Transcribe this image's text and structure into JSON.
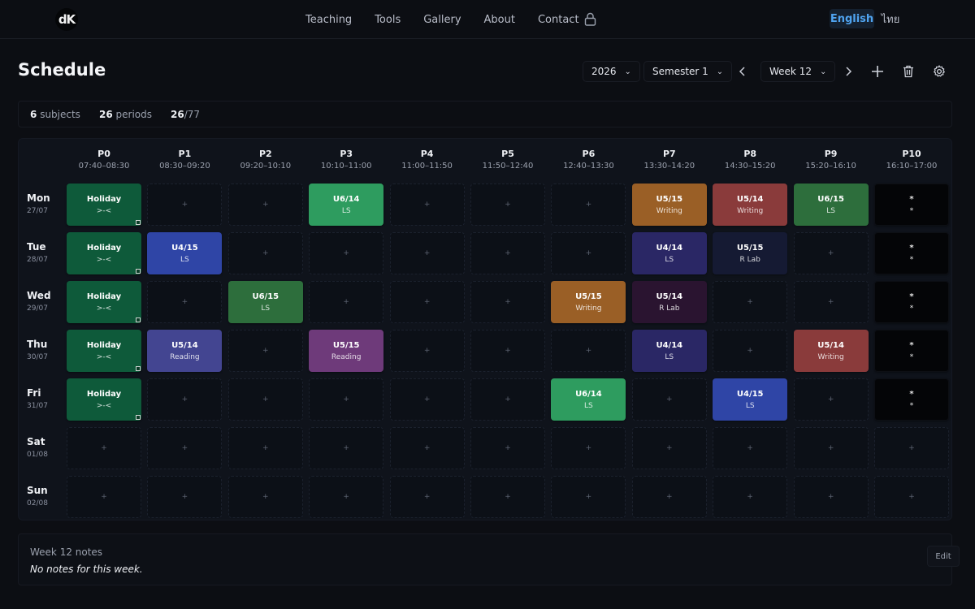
{
  "nav": {
    "logo": "dK",
    "links": [
      "Teaching",
      "Tools",
      "Gallery",
      "About",
      "Contact"
    ],
    "lang_en": "English",
    "lang_th": "ไทย"
  },
  "header": {
    "title": "Schedule",
    "year": "2026",
    "semester": "Semester 1",
    "week": "Week 12"
  },
  "stats": {
    "subjects_count": "6",
    "subjects_label": "subjects",
    "periods_count": "26",
    "periods_label": "periods",
    "progress_done": "26",
    "progress_total": "/77"
  },
  "periods": [
    {
      "label": "P0",
      "time": "07:40–08:30"
    },
    {
      "label": "P1",
      "time": "08:30–09:20"
    },
    {
      "label": "P2",
      "time": "09:20–10:10"
    },
    {
      "label": "P3",
      "time": "10:10–11:00"
    },
    {
      "label": "P4",
      "time": "11:00–11:50"
    },
    {
      "label": "P5",
      "time": "11:50–12:40"
    },
    {
      "label": "P6",
      "time": "12:40–13:30"
    },
    {
      "label": "P7",
      "time": "13:30–14:20"
    },
    {
      "label": "P8",
      "time": "14:30–15:20"
    },
    {
      "label": "P9",
      "time": "15:20–16:10"
    },
    {
      "label": "P10",
      "time": "16:10–17:00"
    }
  ],
  "days": [
    {
      "name": "Mon",
      "date": "27/07"
    },
    {
      "name": "Tue",
      "date": "28/07"
    },
    {
      "name": "Wed",
      "date": "29/07"
    },
    {
      "name": "Thu",
      "date": "30/07"
    },
    {
      "name": "Fri",
      "date": "31/07"
    },
    {
      "name": "Sat",
      "date": "01/08"
    },
    {
      "name": "Sun",
      "date": "02/08"
    }
  ],
  "empty_symbol": "+",
  "colors": {
    "holiday": "#0e5a3a",
    "green_light": "#2e9c5f",
    "green": "#2d6e3c",
    "orange": "#9a5f26",
    "red": "#8a3b3b",
    "blue": "#2f45a6",
    "indigo": "#2a2765",
    "navy": "#151a33",
    "plum": "#2a1430",
    "slate_blue": "#434591",
    "purple": "#6e3a7a",
    "star": "#040507"
  },
  "cells": [
    {
      "day": 0,
      "period": 0,
      "title": "Holiday",
      "sub": ">-<",
      "color": "holiday",
      "marker": true
    },
    {
      "day": 0,
      "period": 3,
      "title": "U6/14",
      "sub": "LS",
      "color": "green_light"
    },
    {
      "day": 0,
      "period": 7,
      "title": "U5/15",
      "sub": "Writing",
      "color": "orange"
    },
    {
      "day": 0,
      "period": 8,
      "title": "U5/14",
      "sub": "Writing",
      "color": "red"
    },
    {
      "day": 0,
      "period": 9,
      "title": "U6/15",
      "sub": "LS",
      "color": "green"
    },
    {
      "day": 0,
      "period": 10,
      "title": "*",
      "sub": "*",
      "color": "star"
    },
    {
      "day": 1,
      "period": 0,
      "title": "Holiday",
      "sub": ">-<",
      "color": "holiday",
      "marker": true
    },
    {
      "day": 1,
      "period": 1,
      "title": "U4/15",
      "sub": "LS",
      "color": "blue"
    },
    {
      "day": 1,
      "period": 7,
      "title": "U4/14",
      "sub": "LS",
      "color": "indigo"
    },
    {
      "day": 1,
      "period": 8,
      "title": "U5/15",
      "sub": "R Lab",
      "color": "navy"
    },
    {
      "day": 1,
      "period": 10,
      "title": "*",
      "sub": "*",
      "color": "star"
    },
    {
      "day": 2,
      "period": 0,
      "title": "Holiday",
      "sub": ">-<",
      "color": "holiday",
      "marker": true
    },
    {
      "day": 2,
      "period": 2,
      "title": "U6/15",
      "sub": "LS",
      "color": "green"
    },
    {
      "day": 2,
      "period": 6,
      "title": "U5/15",
      "sub": "Writing",
      "color": "orange"
    },
    {
      "day": 2,
      "period": 7,
      "title": "U5/14",
      "sub": "R Lab",
      "color": "plum"
    },
    {
      "day": 2,
      "period": 10,
      "title": "*",
      "sub": "*",
      "color": "star"
    },
    {
      "day": 3,
      "period": 0,
      "title": "Holiday",
      "sub": ">-<",
      "color": "holiday",
      "marker": true
    },
    {
      "day": 3,
      "period": 1,
      "title": "U5/14",
      "sub": "Reading",
      "color": "slate_blue"
    },
    {
      "day": 3,
      "period": 3,
      "title": "U5/15",
      "sub": "Reading",
      "color": "purple"
    },
    {
      "day": 3,
      "period": 7,
      "title": "U4/14",
      "sub": "LS",
      "color": "indigo"
    },
    {
      "day": 3,
      "period": 9,
      "title": "U5/14",
      "sub": "Writing",
      "color": "red"
    },
    {
      "day": 3,
      "period": 10,
      "title": "*",
      "sub": "*",
      "color": "star"
    },
    {
      "day": 4,
      "period": 0,
      "title": "Holiday",
      "sub": ">-<",
      "color": "holiday",
      "marker": true
    },
    {
      "day": 4,
      "period": 6,
      "title": "U6/14",
      "sub": "LS",
      "color": "green_light"
    },
    {
      "day": 4,
      "period": 8,
      "title": "U4/15",
      "sub": "LS",
      "color": "blue"
    },
    {
      "day": 4,
      "period": 10,
      "title": "*",
      "sub": "*",
      "color": "star"
    }
  ],
  "notes": {
    "title": "Week 12 notes",
    "text": "No notes for this week.",
    "edit_label": "Edit"
  }
}
